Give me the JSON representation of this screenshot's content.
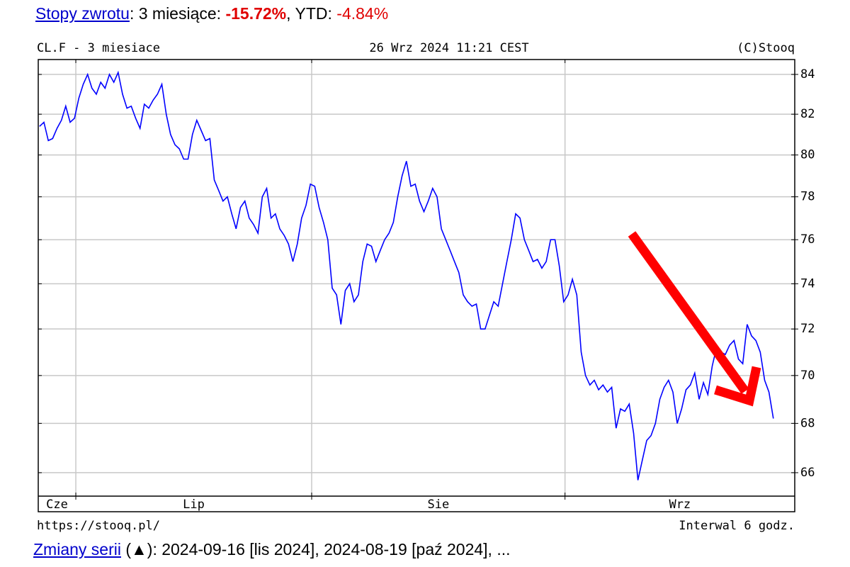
{
  "header": {
    "link": "Stopy zwrotu",
    "sep1": ": 3 miesiące: ",
    "return_3m": "-15.72%",
    "sep2": ", YTD: ",
    "return_ytd": "-4.84%"
  },
  "chart_data": {
    "type": "line",
    "title": "CL.F - 3 miesiace",
    "timestamp": "26 Wrz 2024 11:21 CEST",
    "copyright": "(C)Stooq",
    "source": "https://stooq.pl/",
    "interval": "Interwal 6 godz.",
    "color": "#0000ff",
    "log_scale": true,
    "grid": true,
    "ylim": [
      65.07,
      84.76
    ],
    "yticks": [
      66,
      68,
      70,
      72,
      74,
      76,
      78,
      80,
      82,
      84
    ],
    "xlim": [
      -0.3,
      172.9
    ],
    "xticks": [
      8.3,
      62.3,
      120.3
    ],
    "month_labels": [
      "Cze",
      "Lip",
      "Sie",
      "Wrz"
    ],
    "values": [
      81.4,
      81.6,
      80.7,
      80.8,
      81.3,
      81.7,
      82.4,
      81.6,
      81.8,
      82.8,
      83.5,
      84.0,
      83.3,
      83.0,
      83.6,
      83.3,
      84.0,
      83.6,
      84.1,
      83.0,
      82.3,
      82.4,
      81.8,
      81.3,
      82.5,
      82.3,
      82.7,
      83.0,
      83.5,
      82.0,
      81.0,
      80.5,
      80.3,
      79.8,
      79.8,
      81.0,
      81.7,
      81.2,
      80.7,
      80.8,
      78.8,
      78.3,
      77.8,
      78.0,
      77.2,
      76.5,
      77.5,
      77.8,
      77.0,
      76.7,
      76.3,
      78.0,
      78.4,
      77.0,
      77.2,
      76.5,
      76.2,
      75.8,
      75.0,
      75.8,
      77.0,
      77.6,
      78.6,
      78.5,
      77.5,
      76.8,
      76.0,
      73.8,
      73.5,
      72.2,
      73.7,
      74.0,
      73.2,
      73.5,
      75.0,
      75.8,
      75.7,
      75.0,
      75.5,
      76.0,
      76.3,
      76.8,
      78.0,
      79.0,
      79.7,
      78.5,
      78.6,
      77.8,
      77.3,
      77.8,
      78.4,
      78.0,
      76.5,
      76.0,
      75.5,
      75.0,
      74.5,
      73.5,
      73.2,
      73.0,
      73.1,
      72.0,
      72.0,
      72.6,
      73.2,
      73.0,
      74.0,
      75.0,
      76.0,
      77.2,
      77.0,
      76.0,
      75.5,
      75.0,
      75.1,
      74.7,
      75.0,
      76.0,
      76.0,
      74.8,
      73.2,
      73.5,
      74.2,
      73.5,
      71.0,
      70.0,
      69.6,
      69.8,
      69.4,
      69.6,
      69.3,
      69.5,
      67.8,
      68.6,
      68.5,
      68.8,
      67.6,
      65.7,
      66.5,
      67.3,
      67.5,
      68.0,
      69.0,
      69.5,
      69.8,
      69.3,
      68.0,
      68.6,
      69.4,
      69.6,
      70.1,
      69.0,
      69.7,
      69.2,
      70.4,
      71.2,
      71.0,
      70.9,
      71.3,
      71.5,
      70.7,
      70.5,
      72.2,
      71.7,
      71.5,
      71.0,
      69.8,
      69.3,
      68.2
    ]
  },
  "footer": {
    "link": "Zmiany serii",
    "text": " (▲): 2024-09-16 [lis 2024], 2024-08-19 [paź 2024], ..."
  }
}
